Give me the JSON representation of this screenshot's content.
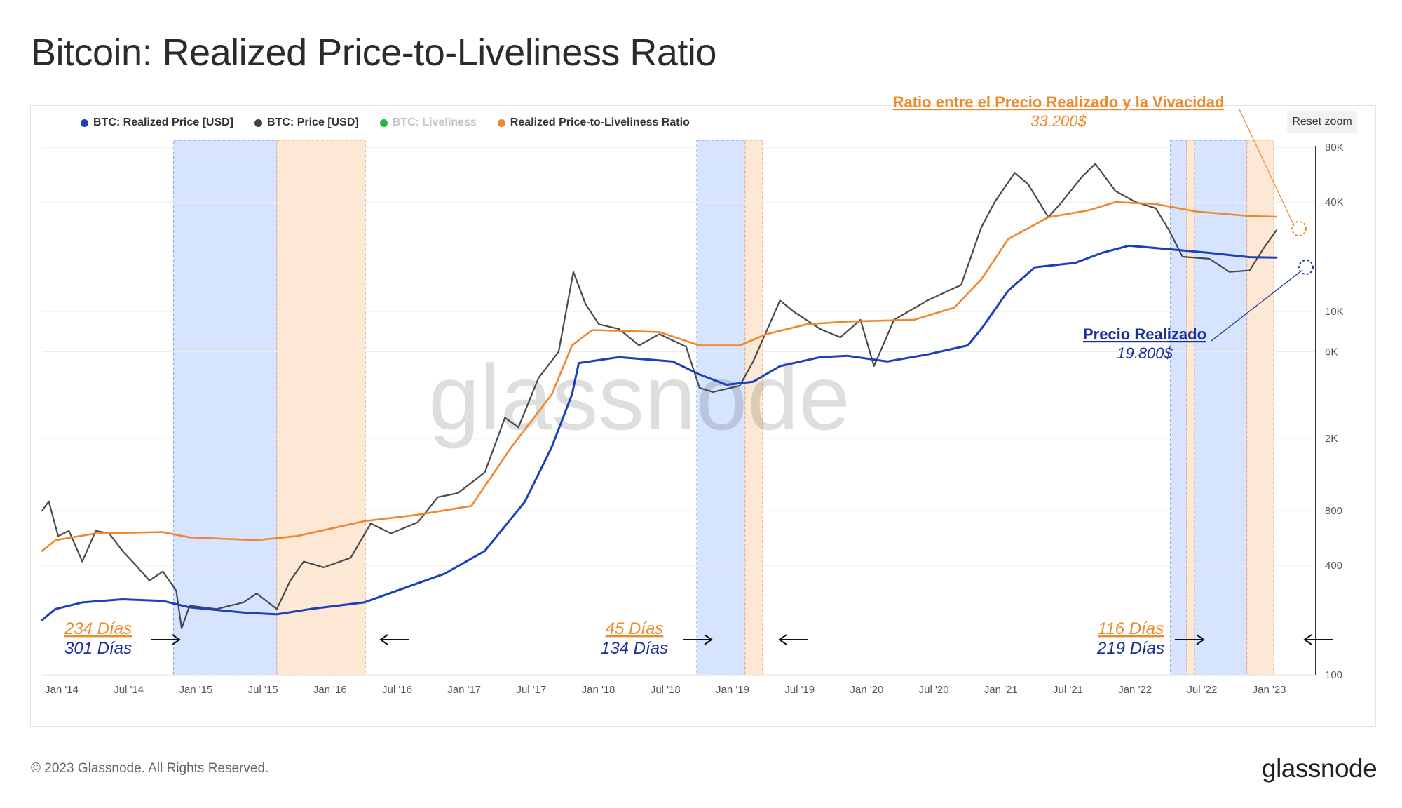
{
  "title": "Bitcoin: Realized Price-to-Liveliness Ratio",
  "legend": [
    {
      "label": "BTC: Realized Price [USD]",
      "color": "#1d3fb8"
    },
    {
      "label": "BTC: Price [USD]",
      "color": "#444444"
    },
    {
      "label": "BTC: Liveliness",
      "color": "#27b43c"
    },
    {
      "label": "Realized Price-to-Liveliness Ratio",
      "color": "#f0862d"
    }
  ],
  "reset_zoom_label": "Reset zoom",
  "watermark": "glassnode",
  "annotations": {
    "ratio_label": "Ratio entre el Precio Realizado y la Vivacidad",
    "ratio_value": "33.200$",
    "realized_label": "Precio Realizado",
    "realized_value": "19.800$"
  },
  "cycles": [
    {
      "orange_days": "234 Días",
      "blue_days": "301 Días"
    },
    {
      "orange_days": "45 Días",
      "blue_days": "134 Días"
    },
    {
      "orange_days": "116 Días",
      "blue_days": "219 Días"
    }
  ],
  "footer": {
    "copyright": "© 2023 Glassnode. All Rights Reserved.",
    "logo": "glassnode"
  },
  "colors": {
    "realized": "#1d3fb8",
    "price": "#4a4a4a",
    "ratio": "#f0862d",
    "blue_band": "#d6e4ff",
    "orange_band": "#fde8d5",
    "annot_orange": "#ee8a2c",
    "annot_blue": "#1b2f9a"
  },
  "chart_data": {
    "type": "line",
    "title": "Bitcoin: Realized Price-to-Liveliness Ratio",
    "y_scale": "log",
    "ylim": [
      100,
      100000
    ],
    "y_ticks": [
      {
        "label": "80K",
        "value": 80000
      },
      {
        "label": "40K",
        "value": 40000
      },
      {
        "label": "10K",
        "value": 10000
      },
      {
        "label": "6K",
        "value": 6000
      },
      {
        "label": "2K",
        "value": 2000
      },
      {
        "label": "800",
        "value": 800
      },
      {
        "label": "400",
        "value": 400
      },
      {
        "label": "100",
        "value": 100
      }
    ],
    "xlim": [
      2014.0,
      2023.3
    ],
    "x_ticks": [
      {
        "label": "Jan '14",
        "value": 2014.0
      },
      {
        "label": "Jul '14",
        "value": 2014.5
      },
      {
        "label": "Jan '15",
        "value": 2015.0
      },
      {
        "label": "Jul '15",
        "value": 2015.5
      },
      {
        "label": "Jan '16",
        "value": 2016.0
      },
      {
        "label": "Jul '16",
        "value": 2016.5
      },
      {
        "label": "Jan '17",
        "value": 2017.0
      },
      {
        "label": "Jul '17",
        "value": 2017.5
      },
      {
        "label": "Jan '18",
        "value": 2018.0
      },
      {
        "label": "Jul '18",
        "value": 2018.5
      },
      {
        "label": "Jan '19",
        "value": 2019.0
      },
      {
        "label": "Jul '19",
        "value": 2019.5
      },
      {
        "label": "Jan '20",
        "value": 2020.0
      },
      {
        "label": "Jul '20",
        "value": 2020.5
      },
      {
        "label": "Jan '21",
        "value": 2021.0
      },
      {
        "label": "Jul '21",
        "value": 2021.5
      },
      {
        "label": "Jan '22",
        "value": 2022.0
      },
      {
        "label": "Jul '22",
        "value": 2022.5
      },
      {
        "label": "Jan '23",
        "value": 2023.0
      }
    ],
    "bands": [
      {
        "type": "blue",
        "start": 2014.98,
        "end": 2015.75
      },
      {
        "type": "orange",
        "start": 2015.75,
        "end": 2016.41
      },
      {
        "type": "blue",
        "start": 2018.88,
        "end": 2019.24
      },
      {
        "type": "orange",
        "start": 2019.24,
        "end": 2019.37
      },
      {
        "type": "blue",
        "start": 2022.41,
        "end": 2022.53
      },
      {
        "type": "orange",
        "start": 2022.53,
        "end": 2022.59
      },
      {
        "type": "blue",
        "start": 2022.59,
        "end": 2022.98
      },
      {
        "type": "orange",
        "start": 2022.98,
        "end": 2023.18
      }
    ],
    "series": [
      {
        "name": "BTC: Realized Price [USD]",
        "points": [
          [
            2014.0,
            200
          ],
          [
            2014.1,
            230
          ],
          [
            2014.3,
            250
          ],
          [
            2014.6,
            260
          ],
          [
            2014.9,
            255
          ],
          [
            2015.1,
            235
          ],
          [
            2015.5,
            220
          ],
          [
            2015.75,
            215
          ],
          [
            2016.0,
            230
          ],
          [
            2016.4,
            250
          ],
          [
            2016.7,
            300
          ],
          [
            2017.0,
            360
          ],
          [
            2017.3,
            480
          ],
          [
            2017.6,
            900
          ],
          [
            2017.8,
            1800
          ],
          [
            2017.95,
            3500
          ],
          [
            2018.0,
            5200
          ],
          [
            2018.3,
            5600
          ],
          [
            2018.7,
            5300
          ],
          [
            2018.9,
            4500
          ],
          [
            2019.1,
            3950
          ],
          [
            2019.3,
            4100
          ],
          [
            2019.5,
            5000
          ],
          [
            2019.8,
            5600
          ],
          [
            2020.0,
            5700
          ],
          [
            2020.3,
            5300
          ],
          [
            2020.6,
            5800
          ],
          [
            2020.9,
            6500
          ],
          [
            2021.0,
            8000
          ],
          [
            2021.2,
            13000
          ],
          [
            2021.4,
            17500
          ],
          [
            2021.7,
            18500
          ],
          [
            2021.9,
            21000
          ],
          [
            2022.1,
            23000
          ],
          [
            2022.4,
            22000
          ],
          [
            2022.7,
            21000
          ],
          [
            2023.0,
            19900
          ],
          [
            2023.2,
            19800
          ]
        ]
      },
      {
        "name": "BTC: Price [USD]",
        "points": [
          [
            2014.0,
            800
          ],
          [
            2014.05,
            900
          ],
          [
            2014.12,
            580
          ],
          [
            2014.2,
            620
          ],
          [
            2014.3,
            420
          ],
          [
            2014.4,
            620
          ],
          [
            2014.5,
            600
          ],
          [
            2014.6,
            480
          ],
          [
            2014.7,
            400
          ],
          [
            2014.8,
            330
          ],
          [
            2014.9,
            370
          ],
          [
            2015.0,
            290
          ],
          [
            2015.04,
            180
          ],
          [
            2015.1,
            240
          ],
          [
            2015.3,
            230
          ],
          [
            2015.5,
            250
          ],
          [
            2015.6,
            280
          ],
          [
            2015.75,
            230
          ],
          [
            2015.85,
            330
          ],
          [
            2015.95,
            420
          ],
          [
            2016.1,
            390
          ],
          [
            2016.3,
            440
          ],
          [
            2016.45,
            680
          ],
          [
            2016.6,
            600
          ],
          [
            2016.8,
            690
          ],
          [
            2016.95,
            950
          ],
          [
            2017.1,
            1000
          ],
          [
            2017.3,
            1300
          ],
          [
            2017.45,
            2600
          ],
          [
            2017.55,
            2300
          ],
          [
            2017.7,
            4300
          ],
          [
            2017.85,
            6000
          ],
          [
            2017.96,
            16500
          ],
          [
            2018.05,
            11000
          ],
          [
            2018.15,
            8500
          ],
          [
            2018.3,
            8000
          ],
          [
            2018.45,
            6500
          ],
          [
            2018.6,
            7500
          ],
          [
            2018.8,
            6400
          ],
          [
            2018.9,
            3800
          ],
          [
            2019.0,
            3600
          ],
          [
            2019.2,
            3900
          ],
          [
            2019.3,
            5300
          ],
          [
            2019.5,
            11500
          ],
          [
            2019.6,
            10000
          ],
          [
            2019.8,
            8000
          ],
          [
            2019.95,
            7200
          ],
          [
            2020.1,
            9000
          ],
          [
            2020.2,
            5000
          ],
          [
            2020.35,
            9000
          ],
          [
            2020.6,
            11500
          ],
          [
            2020.85,
            14000
          ],
          [
            2021.0,
            29000
          ],
          [
            2021.1,
            40000
          ],
          [
            2021.25,
            58000
          ],
          [
            2021.35,
            50000
          ],
          [
            2021.5,
            33000
          ],
          [
            2021.6,
            40000
          ],
          [
            2021.75,
            55000
          ],
          [
            2021.85,
            65000
          ],
          [
            2022.0,
            46000
          ],
          [
            2022.15,
            40000
          ],
          [
            2022.3,
            37000
          ],
          [
            2022.4,
            28000
          ],
          [
            2022.5,
            20000
          ],
          [
            2022.7,
            19500
          ],
          [
            2022.85,
            16500
          ],
          [
            2023.0,
            16800
          ],
          [
            2023.1,
            22000
          ],
          [
            2023.2,
            28000
          ]
        ]
      },
      {
        "name": "Realized Price-to-Liveliness Ratio",
        "points": [
          [
            2014.0,
            480
          ],
          [
            2014.1,
            550
          ],
          [
            2014.4,
            600
          ],
          [
            2014.9,
            610
          ],
          [
            2015.1,
            570
          ],
          [
            2015.6,
            550
          ],
          [
            2015.9,
            580
          ],
          [
            2016.4,
            700
          ],
          [
            2016.8,
            760
          ],
          [
            2017.2,
            850
          ],
          [
            2017.5,
            1800
          ],
          [
            2017.8,
            3500
          ],
          [
            2017.95,
            6500
          ],
          [
            2018.1,
            7900
          ],
          [
            2018.6,
            7700
          ],
          [
            2018.9,
            6500
          ],
          [
            2019.2,
            6500
          ],
          [
            2019.4,
            7500
          ],
          [
            2019.7,
            8500
          ],
          [
            2020.0,
            8800
          ],
          [
            2020.5,
            9000
          ],
          [
            2020.8,
            10500
          ],
          [
            2021.0,
            15000
          ],
          [
            2021.2,
            25000
          ],
          [
            2021.5,
            33000
          ],
          [
            2021.8,
            36000
          ],
          [
            2022.0,
            40000
          ],
          [
            2022.3,
            39000
          ],
          [
            2022.6,
            35500
          ],
          [
            2023.0,
            33500
          ],
          [
            2023.2,
            33200
          ]
        ]
      }
    ]
  }
}
